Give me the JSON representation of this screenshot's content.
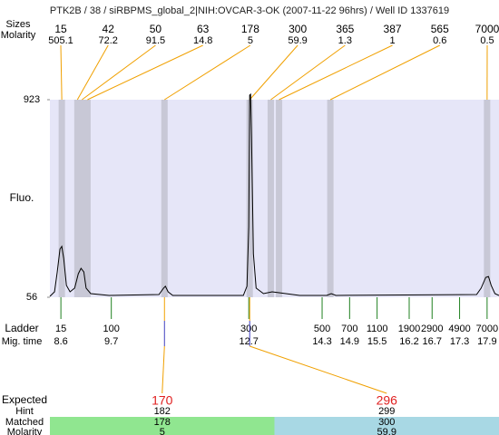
{
  "chart_data": {
    "type": "line",
    "title": "PTK2B / 38 / siRBPMS_global_2|NIH:OVCAR-3-OK (2007-11-22 96hrs) / Well ID 1337619",
    "ylabel": "Fluo.",
    "row_labels": {
      "sizes": "Sizes",
      "molarity": "Molarity",
      "ladder": "Ladder",
      "mig_time": "Mig. time",
      "expected": "Expected",
      "hint": "Hint",
      "matched": "Matched",
      "bottom_molarity": "Molarity"
    },
    "x": [
      8.36,
      8.46,
      8.52,
      8.58,
      8.62,
      8.66,
      8.72,
      8.8,
      8.9,
      8.98,
      9.04,
      9.1,
      9.15,
      9.25,
      9.65,
      10.74,
      10.84,
      10.88,
      10.94,
      11.04,
      12.58,
      12.66,
      12.7,
      12.72,
      12.74,
      12.76,
      12.8,
      12.86,
      13.02,
      13.21,
      13.81,
      14.4,
      14.5,
      14.6,
      17.67,
      17.77,
      17.87,
      17.93,
      17.99,
      18.07,
      18.16
    ],
    "series": [
      {
        "color": "#000000",
        "values": [
          60,
          80,
          167,
          267,
          279,
          227,
          108,
          80,
          96,
          159,
          183,
          167,
          96,
          72,
          64,
          68,
          96,
          104,
          80,
          64,
          64,
          104,
          366,
          943,
          947,
          764,
          247,
          96,
          72,
          80,
          64,
          64,
          72,
          64,
          68,
          96,
          143,
          147,
          108,
          72,
          64
        ]
      }
    ],
    "xlim": [
      8.36,
      18.16
    ],
    "ylim": [
      56,
      923
    ],
    "yticks": [
      56,
      923
    ],
    "plot_color": "#e6e6f8",
    "band_color": "#c8c8d6",
    "connector_color": "#f0a000",
    "peaks": {
      "sizes": [
        15,
        42,
        50,
        63,
        178,
        300,
        365,
        387,
        565,
        7000
      ],
      "molarity": [
        505.1,
        72.2,
        91.5,
        14.8,
        5,
        59.9,
        1.3,
        1,
        0.6,
        0.5
      ],
      "times": [
        8.62,
        8.96,
        9.06,
        9.18,
        10.86,
        12.72,
        13.18,
        13.36,
        14.48,
        17.9
      ]
    },
    "ladder": {
      "color": "#208020",
      "sizes": [
        15,
        100,
        300,
        500,
        700,
        1100,
        1900,
        2900,
        4900,
        7000
      ],
      "times": [
        8.6,
        9.7,
        12.7,
        14.3,
        14.9,
        15.5,
        16.2,
        16.7,
        17.3,
        17.9
      ]
    },
    "expected": [
      {
        "expected": 170,
        "hint": 182,
        "matched": 178,
        "molarity": 5,
        "peak": 4,
        "color": "#90e690"
      },
      {
        "expected": 296,
        "hint": 299,
        "matched": 300,
        "molarity": 59.9,
        "peak": 5,
        "color": "#a8d8e4"
      }
    ]
  }
}
